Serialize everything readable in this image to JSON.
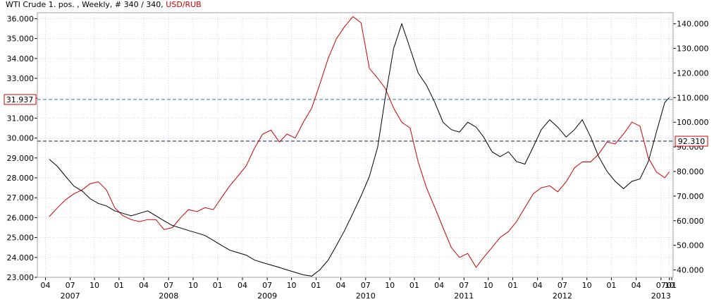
{
  "header": {
    "primary": "WTI Crude 1. pos. , Weekly, # 340 / 340, ",
    "secondary": "USD/RUB"
  },
  "markers": {
    "left": "31.937",
    "right": "92.310"
  },
  "colors": {
    "primary_series": "#000000",
    "secondary_series": "#cc0000",
    "left_marker_line": "#2a7fa8",
    "right_marker_line": "#1a1a66",
    "grid": "#d8d8d8",
    "frame": "#a0a0a0",
    "axis_tick": "#000000"
  },
  "chart_data": {
    "type": "line",
    "grid": true,
    "x_time_range": [
      "2006-09-01",
      "2013-02-15"
    ],
    "month_ticks": [
      {
        "date": "2006-10-01",
        "label": "04"
      },
      {
        "date": "2007-01-01",
        "label": "07"
      },
      {
        "date": "2007-04-01",
        "label": "10"
      },
      {
        "date": "2007-07-01",
        "label": "01"
      },
      {
        "date": "2007-10-01",
        "label": "04"
      },
      {
        "date": "2008-01-01",
        "label": "07"
      },
      {
        "date": "2008-04-01",
        "label": "10"
      },
      {
        "date": "2008-07-01",
        "label": "01"
      },
      {
        "date": "2008-10-01",
        "label": "04"
      },
      {
        "date": "2009-01-01",
        "label": "07"
      },
      {
        "date": "2009-04-01",
        "label": "10"
      },
      {
        "date": "2009-07-01",
        "label": "01"
      },
      {
        "date": "2009-10-01",
        "label": "04"
      },
      {
        "date": "2010-01-01",
        "label": "07"
      },
      {
        "date": "2010-04-01",
        "label": "10"
      },
      {
        "date": "2010-07-01",
        "label": "01"
      },
      {
        "date": "2010-10-01",
        "label": "04"
      },
      {
        "date": "2011-01-01",
        "label": "07"
      },
      {
        "date": "2011-04-01",
        "label": "10"
      },
      {
        "date": "2011-07-01",
        "label": "01"
      },
      {
        "date": "2011-10-01",
        "label": "04"
      },
      {
        "date": "2012-01-01",
        "label": "07"
      },
      {
        "date": "2012-04-01",
        "label": "10"
      },
      {
        "date": "2012-07-01",
        "label": "01"
      },
      {
        "date": "2012-10-01",
        "label": "04"
      },
      {
        "date": "2013-01-01",
        "label": "07"
      },
      {
        "date": "2013-02-01",
        "label": "10"
      },
      {
        "date": "2013-02-10",
        "label": "01"
      }
    ],
    "year_labels": [
      {
        "date": "2007-01-01",
        "label": "2007"
      },
      {
        "date": "2008-01-01",
        "label": "2008"
      },
      {
        "date": "2009-01-01",
        "label": "2009"
      },
      {
        "date": "2010-01-01",
        "label": "2010"
      },
      {
        "date": "2011-01-01",
        "label": "2011"
      },
      {
        "date": "2012-01-01",
        "label": "2012"
      },
      {
        "date": "2013-01-01",
        "label": "2013"
      }
    ],
    "y_left": {
      "range": [
        23.0,
        36.3
      ],
      "ticks": [
        "23.000",
        "24.000",
        "25.000",
        "26.000",
        "27.000",
        "28.000",
        "29.000",
        "30.000",
        "31.000",
        "32.000",
        "33.000",
        "34.000",
        "35.000",
        "36.000"
      ]
    },
    "y_right": {
      "range": [
        37.0,
        144.5
      ],
      "ticks": [
        "40.000",
        "50.000",
        "60.000",
        "70.000",
        "80.000",
        "90.000",
        "100.000",
        "110.000",
        "120.000",
        "130.000",
        "140.000"
      ]
    },
    "reference_lines": [
      {
        "axis": "left",
        "value": 31.937
      },
      {
        "axis": "right",
        "value": 92.31
      }
    ],
    "series": [
      {
        "name": "USD/RUB",
        "axis": "left",
        "points": [
          [
            "2006-10-15",
            26.05
          ],
          [
            "2006-11-15",
            26.5
          ],
          [
            "2006-12-15",
            26.9
          ],
          [
            "2007-01-15",
            27.2
          ],
          [
            "2007-02-15",
            27.4
          ],
          [
            "2007-03-15",
            27.7
          ],
          [
            "2007-04-15",
            27.8
          ],
          [
            "2007-05-15",
            27.4
          ],
          [
            "2007-06-15",
            26.5
          ],
          [
            "2007-07-15",
            26.1
          ],
          [
            "2007-08-15",
            25.9
          ],
          [
            "2007-09-15",
            25.8
          ],
          [
            "2007-10-15",
            25.9
          ],
          [
            "2007-11-15",
            25.9
          ],
          [
            "2007-12-15",
            25.4
          ],
          [
            "2008-01-15",
            25.5
          ],
          [
            "2008-02-15",
            26.0
          ],
          [
            "2008-03-15",
            26.4
          ],
          [
            "2008-04-15",
            26.3
          ],
          [
            "2008-05-15",
            26.5
          ],
          [
            "2008-06-15",
            26.4
          ],
          [
            "2008-07-15",
            27.0
          ],
          [
            "2008-08-15",
            27.6
          ],
          [
            "2008-09-15",
            28.1
          ],
          [
            "2008-10-15",
            28.6
          ],
          [
            "2008-11-15",
            29.5
          ],
          [
            "2008-12-15",
            30.2
          ],
          [
            "2009-01-15",
            30.4
          ],
          [
            "2009-02-15",
            29.8
          ],
          [
            "2009-03-15",
            30.2
          ],
          [
            "2009-04-15",
            30.0
          ],
          [
            "2009-05-15",
            30.8
          ],
          [
            "2009-06-15",
            31.5
          ],
          [
            "2009-07-15",
            32.7
          ],
          [
            "2009-08-15",
            34.0
          ],
          [
            "2009-09-15",
            35.0
          ],
          [
            "2009-10-15",
            35.6
          ],
          [
            "2009-11-15",
            36.1
          ],
          [
            "2009-12-15",
            35.8
          ],
          [
            "2010-01-15",
            33.5
          ],
          [
            "2010-02-15",
            33.0
          ],
          [
            "2010-03-15",
            32.5
          ],
          [
            "2010-04-15",
            31.5
          ],
          [
            "2010-05-15",
            30.8
          ],
          [
            "2010-06-15",
            30.5
          ],
          [
            "2010-07-15",
            28.8
          ],
          [
            "2010-08-15",
            27.5
          ],
          [
            "2010-09-15",
            26.5
          ],
          [
            "2010-10-15",
            25.5
          ],
          [
            "2010-11-15",
            24.5
          ],
          [
            "2010-12-15",
            24.0
          ],
          [
            "2011-01-15",
            24.2
          ],
          [
            "2011-02-15",
            23.5
          ],
          [
            "2011-03-15",
            24.0
          ],
          [
            "2011-04-15",
            24.5
          ],
          [
            "2011-05-15",
            25.0
          ],
          [
            "2011-06-15",
            25.3
          ],
          [
            "2011-07-15",
            25.8
          ],
          [
            "2011-08-15",
            26.5
          ],
          [
            "2011-09-15",
            27.2
          ],
          [
            "2011-10-15",
            27.5
          ],
          [
            "2011-11-15",
            27.6
          ],
          [
            "2011-12-15",
            27.3
          ],
          [
            "2012-01-15",
            27.8
          ],
          [
            "2012-02-15",
            28.5
          ],
          [
            "2012-03-15",
            28.8
          ],
          [
            "2012-04-15",
            28.8
          ],
          [
            "2012-05-15",
            29.2
          ],
          [
            "2012-06-15",
            29.8
          ],
          [
            "2012-07-15",
            29.7
          ],
          [
            "2012-08-15",
            30.2
          ],
          [
            "2012-09-15",
            30.8
          ],
          [
            "2012-10-15",
            30.6
          ],
          [
            "2012-11-15",
            29.0
          ],
          [
            "2012-12-15",
            28.3
          ],
          [
            "2013-01-15",
            28.0
          ],
          [
            "2013-02-01",
            28.3
          ]
        ]
      },
      {
        "name": "WTI Crude 1. pos.",
        "axis": "right",
        "points": [
          [
            "2006-10-15",
            85.0
          ],
          [
            "2006-11-15",
            82.0
          ],
          [
            "2006-12-15",
            78.0
          ],
          [
            "2007-01-15",
            74.0
          ],
          [
            "2007-02-15",
            72.0
          ],
          [
            "2007-03-15",
            69.0
          ],
          [
            "2007-04-15",
            67.0
          ],
          [
            "2007-05-15",
            66.0
          ],
          [
            "2007-06-15",
            64.0
          ],
          [
            "2007-07-15",
            63.0
          ],
          [
            "2007-08-15",
            62.0
          ],
          [
            "2007-09-15",
            63.0
          ],
          [
            "2007-10-15",
            64.0
          ],
          [
            "2007-11-15",
            62.0
          ],
          [
            "2007-12-15",
            60.0
          ],
          [
            "2008-01-15",
            58.0
          ],
          [
            "2008-02-15",
            57.0
          ],
          [
            "2008-03-15",
            56.0
          ],
          [
            "2008-04-15",
            55.0
          ],
          [
            "2008-05-15",
            54.0
          ],
          [
            "2008-06-15",
            52.0
          ],
          [
            "2008-07-15",
            50.0
          ],
          [
            "2008-08-15",
            48.0
          ],
          [
            "2008-09-15",
            47.0
          ],
          [
            "2008-10-15",
            46.0
          ],
          [
            "2008-11-15",
            44.0
          ],
          [
            "2008-12-15",
            43.0
          ],
          [
            "2009-01-15",
            42.0
          ],
          [
            "2009-02-15",
            41.0
          ],
          [
            "2009-03-15",
            40.0
          ],
          [
            "2009-04-15",
            39.0
          ],
          [
            "2009-05-15",
            38.0
          ],
          [
            "2009-06-15",
            37.5
          ],
          [
            "2009-07-15",
            40.0
          ],
          [
            "2009-08-15",
            44.0
          ],
          [
            "2009-09-15",
            50.0
          ],
          [
            "2009-10-15",
            56.0
          ],
          [
            "2009-11-15",
            63.0
          ],
          [
            "2009-12-15",
            70.0
          ],
          [
            "2010-01-15",
            78.0
          ],
          [
            "2010-02-15",
            90.0
          ],
          [
            "2010-03-15",
            110.0
          ],
          [
            "2010-04-15",
            130.0
          ],
          [
            "2010-05-15",
            140.0
          ],
          [
            "2010-06-15",
            130.0
          ],
          [
            "2010-07-15",
            120.0
          ],
          [
            "2010-08-15",
            115.0
          ],
          [
            "2010-09-15",
            108.0
          ],
          [
            "2010-10-15",
            100.0
          ],
          [
            "2010-11-15",
            97.0
          ],
          [
            "2010-12-15",
            96.0
          ],
          [
            "2011-01-15",
            100.0
          ],
          [
            "2011-02-15",
            98.0
          ],
          [
            "2011-03-15",
            94.0
          ],
          [
            "2011-04-15",
            88.0
          ],
          [
            "2011-05-15",
            86.0
          ],
          [
            "2011-06-15",
            88.0
          ],
          [
            "2011-07-15",
            84.0
          ],
          [
            "2011-08-15",
            83.0
          ],
          [
            "2011-09-15",
            90.0
          ],
          [
            "2011-10-15",
            97.0
          ],
          [
            "2011-11-15",
            101.0
          ],
          [
            "2011-12-15",
            98.0
          ],
          [
            "2012-01-15",
            94.0
          ],
          [
            "2012-02-15",
            97.0
          ],
          [
            "2012-03-15",
            101.0
          ],
          [
            "2012-04-15",
            94.0
          ],
          [
            "2012-05-15",
            86.0
          ],
          [
            "2012-06-15",
            80.0
          ],
          [
            "2012-07-15",
            76.0
          ],
          [
            "2012-08-15",
            73.0
          ],
          [
            "2012-09-15",
            76.0
          ],
          [
            "2012-10-15",
            77.0
          ],
          [
            "2012-11-15",
            84.0
          ],
          [
            "2012-12-15",
            96.0
          ],
          [
            "2013-01-15",
            108.0
          ],
          [
            "2013-02-01",
            110.0
          ]
        ]
      }
    ]
  }
}
